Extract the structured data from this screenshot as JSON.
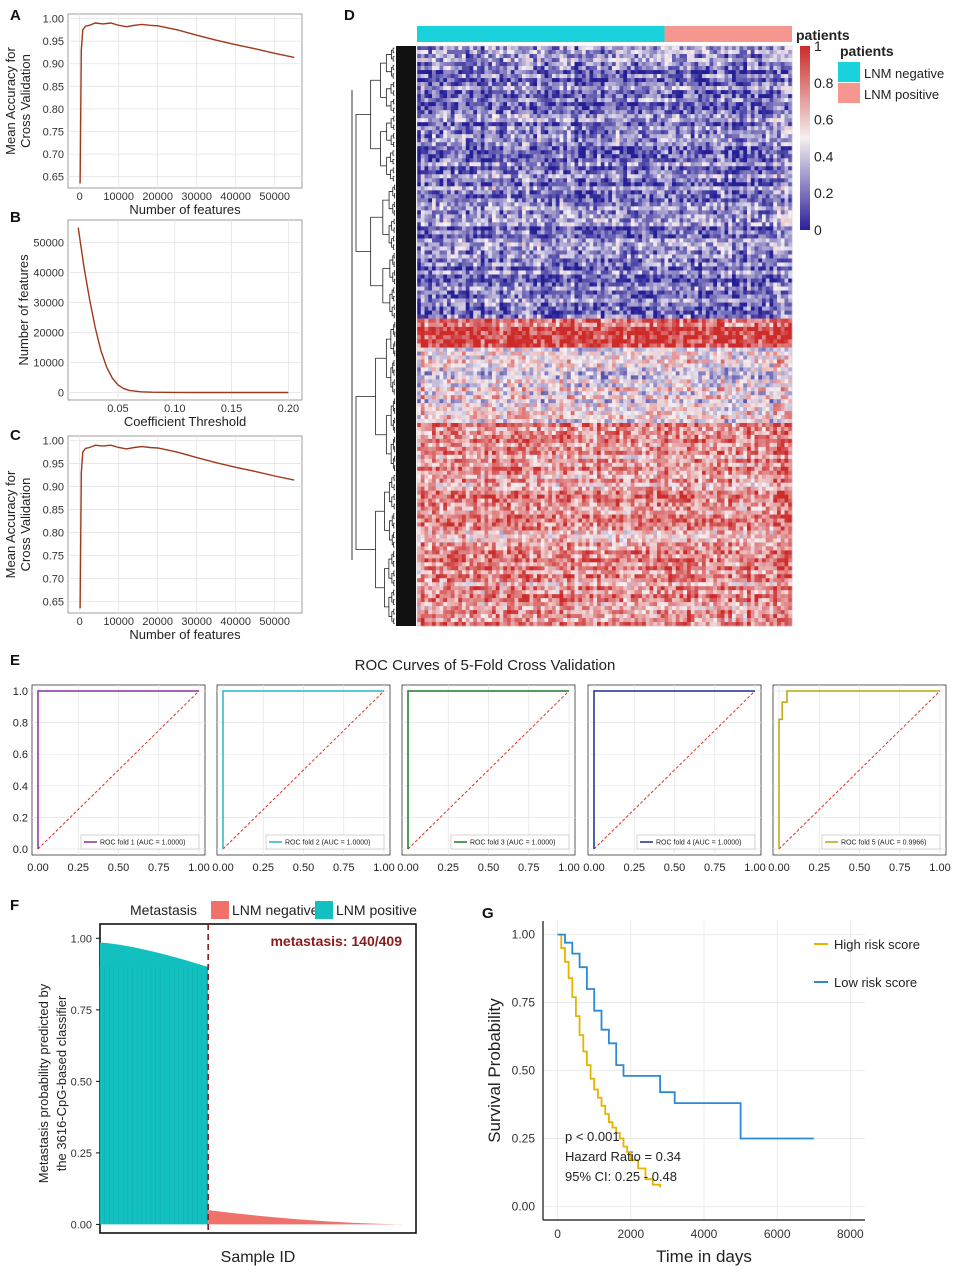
{
  "panel_letters": [
    "A",
    "B",
    "C",
    "D",
    "E",
    "F",
    "G"
  ],
  "chart_data": [
    {
      "id": "A",
      "type": "line",
      "xlabel": "Number of features",
      "ylabel_lines": [
        "Mean Accuracy for",
        "Cross Validation"
      ],
      "xlim": [
        -3000,
        57000
      ],
      "ylim": [
        0.625,
        1.01
      ],
      "xticks": [
        0,
        10000,
        20000,
        30000,
        40000,
        50000
      ],
      "yticks": [
        0.65,
        0.7,
        0.75,
        0.8,
        0.85,
        0.9,
        0.95,
        1.0
      ],
      "ytick_labels": [
        "0.65",
        "0.70",
        "0.75",
        "0.80",
        "0.85",
        "0.90",
        "0.95",
        "1.00"
      ],
      "color": "#a0391c",
      "x": [
        100,
        400,
        800,
        1500,
        2500,
        4000,
        6000,
        8000,
        10000,
        12000,
        14000,
        16000,
        18000,
        20000,
        25000,
        30000,
        35000,
        40000,
        45000,
        50000,
        55000
      ],
      "y": [
        0.635,
        0.93,
        0.975,
        0.983,
        0.985,
        0.99,
        0.988,
        0.99,
        0.985,
        0.982,
        0.985,
        0.987,
        0.985,
        0.984,
        0.975,
        0.963,
        0.952,
        0.942,
        0.933,
        0.923,
        0.914
      ]
    },
    {
      "id": "B",
      "type": "line",
      "xlabel": "Coefficient Threshold",
      "ylabel_lines": [
        "Number of features"
      ],
      "xlim": [
        0.006,
        0.212
      ],
      "ylim": [
        -2500,
        57500
      ],
      "xticks": [
        0.05,
        0.1,
        0.15,
        0.2
      ],
      "xtick_labels": [
        "0.05",
        "0.10",
        "0.15",
        "0.20"
      ],
      "yticks": [
        0,
        10000,
        20000,
        30000,
        40000,
        50000
      ],
      "color": "#a0391c",
      "x": [
        0.015,
        0.02,
        0.025,
        0.03,
        0.035,
        0.04,
        0.045,
        0.05,
        0.055,
        0.06,
        0.07,
        0.08,
        0.1,
        0.12,
        0.15,
        0.2
      ],
      "y": [
        55000,
        42000,
        31000,
        21500,
        14000,
        8500,
        4800,
        2500,
        1300,
        700,
        250,
        100,
        30,
        10,
        4,
        1
      ]
    },
    {
      "id": "C",
      "type": "line",
      "xlabel": "Number of features",
      "ylabel_lines": [
        "Mean Accuracy for",
        "Cross Validation"
      ],
      "xlim": [
        -3000,
        57000
      ],
      "ylim": [
        0.625,
        1.01
      ],
      "xticks": [
        0,
        10000,
        20000,
        30000,
        40000,
        50000
      ],
      "yticks": [
        0.65,
        0.7,
        0.75,
        0.8,
        0.85,
        0.9,
        0.95,
        1.0
      ],
      "ytick_labels": [
        "0.65",
        "0.70",
        "0.75",
        "0.80",
        "0.85",
        "0.90",
        "0.95",
        "1.00"
      ],
      "color": "#a0391c",
      "x": [
        100,
        400,
        800,
        1500,
        2500,
        4000,
        6000,
        8000,
        10000,
        12000,
        14000,
        16000,
        18000,
        20000,
        25000,
        30000,
        35000,
        40000,
        45000,
        50000,
        55000
      ],
      "y": [
        0.635,
        0.93,
        0.975,
        0.983,
        0.985,
        0.99,
        0.988,
        0.99,
        0.985,
        0.982,
        0.985,
        0.987,
        0.985,
        0.984,
        0.975,
        0.963,
        0.952,
        0.942,
        0.933,
        0.923,
        0.914
      ]
    },
    {
      "id": "D",
      "type": "heatmap",
      "annotation_title": "patients",
      "colorbar_ticks": [
        "0",
        "0.2",
        "0.4",
        "0.6",
        "0.8",
        "1"
      ],
      "colorbar_colors": [
        "#2b1f9a",
        "#f5f0f0",
        "#cc2a2a"
      ],
      "negative_fraction": 0.66,
      "legend_title": "patients",
      "legend": [
        {
          "label": "LNM negative",
          "color": "#19d2dc"
        },
        {
          "label": "LNM positive",
          "color": "#f5978e"
        }
      ],
      "row_blocks": [
        {
          "fraction": 0.47,
          "mean": 0.22
        },
        {
          "fraction": 0.05,
          "mean": 0.88
        },
        {
          "fraction": 0.13,
          "mean": 0.5
        },
        {
          "fraction": 0.35,
          "mean": 0.72
        }
      ]
    },
    {
      "id": "E",
      "type": "line",
      "title": "ROC Curves of 5-Fold Cross Validation",
      "xticks": [
        "0.00",
        "0.25",
        "0.50",
        "0.75",
        "1.00"
      ],
      "yticks": [
        "0.0",
        "0.2",
        "0.4",
        "0.6",
        "0.8",
        "1.0"
      ],
      "diagonal_color": "#e03020",
      "folds": [
        {
          "label": "ROC fold 1 (AUC = 1.0000)",
          "color": "#8b2fa0",
          "x": [
            0,
            0,
            1
          ],
          "y": [
            0,
            1,
            1
          ]
        },
        {
          "label": "ROC fold 2 (AUC = 1.0000)",
          "color": "#2ab3c8",
          "x": [
            0,
            0,
            1
          ],
          "y": [
            0,
            1,
            1
          ]
        },
        {
          "label": "ROC fold 3 (AUC = 1.0000)",
          "color": "#1a7a2a",
          "x": [
            0,
            0,
            1
          ],
          "y": [
            0,
            1,
            1
          ]
        },
        {
          "label": "ROC fold 4 (AUC = 1.0000)",
          "color": "#1a2f8c",
          "x": [
            0,
            0,
            1
          ],
          "y": [
            0,
            1,
            1
          ]
        },
        {
          "label": "ROC fold 5 (AUC = 0.9966)",
          "color": "#b8a80a",
          "x": [
            0,
            0,
            0.02,
            0.02,
            0.05,
            0.05,
            1
          ],
          "y": [
            0,
            0.82,
            0.82,
            0.93,
            0.93,
            1,
            1
          ]
        }
      ]
    },
    {
      "id": "F",
      "type": "bar",
      "legend_title": "Metastasis",
      "legend": [
        {
          "label": "LNM negative",
          "color": "#f0716a"
        },
        {
          "label": "LNM positive",
          "color": "#13c0c0"
        }
      ],
      "xlabel": "Sample ID",
      "ylabel_lines": [
        "Metastasis probability predicted by",
        "the 3616-CpG-based classifier"
      ],
      "yticks": [
        0,
        0.25,
        0.5,
        0.75,
        1.0
      ],
      "ytick_labels": [
        "0.00",
        "0.25",
        "0.50",
        "0.75",
        "1.00"
      ],
      "ylim": [
        -0.03,
        1.05
      ],
      "annotation": "metastasis: 140/409",
      "annotation_color": "#8b1a1a",
      "n_samples": 409,
      "n_positive": 140,
      "positive_range": [
        0.985,
        0.9
      ],
      "negative_range": [
        0.05,
        0.0
      ]
    },
    {
      "id": "G",
      "type": "line",
      "xlabel": "Time in days",
      "ylabel": "Survival Probability",
      "xlim": [
        -400,
        8400
      ],
      "ylim": [
        -0.05,
        1.05
      ],
      "xticks": [
        0,
        2000,
        4000,
        6000,
        8000
      ],
      "yticks": [
        0,
        0.25,
        0.5,
        0.75,
        1.0
      ],
      "ytick_labels": [
        "0.00",
        "0.25",
        "0.50",
        "0.75",
        "1.00"
      ],
      "annotations": [
        "p < 0.001",
        "Hazard Ratio = 0.34",
        "95% CI: 0.25 - 0.48"
      ],
      "series": [
        {
          "name": "High risk score",
          "color": "#e5b400",
          "x": [
            0,
            100,
            200,
            300,
            400,
            500,
            600,
            700,
            800,
            900,
            1000,
            1100,
            1200,
            1300,
            1400,
            1500,
            1600,
            1700,
            1800,
            1900,
            2000,
            2200,
            2400,
            2600,
            2800
          ],
          "y": [
            1.0,
            0.95,
            0.9,
            0.84,
            0.77,
            0.7,
            0.63,
            0.57,
            0.52,
            0.47,
            0.43,
            0.4,
            0.37,
            0.34,
            0.31,
            0.29,
            0.27,
            0.25,
            0.22,
            0.2,
            0.17,
            0.14,
            0.1,
            0.08,
            0.07
          ]
        },
        {
          "name": "Low risk score",
          "color": "#2a8ad6",
          "x": [
            0,
            200,
            400,
            600,
            800,
            1000,
            1200,
            1400,
            1600,
            1800,
            2000,
            2400,
            2800,
            3200,
            3600,
            4000,
            4400,
            4900,
            5000,
            6000,
            7000
          ],
          "y": [
            1.0,
            0.97,
            0.93,
            0.88,
            0.8,
            0.72,
            0.65,
            0.6,
            0.52,
            0.48,
            0.48,
            0.48,
            0.42,
            0.38,
            0.38,
            0.38,
            0.38,
            0.38,
            0.25,
            0.25,
            0.25
          ]
        }
      ]
    }
  ]
}
